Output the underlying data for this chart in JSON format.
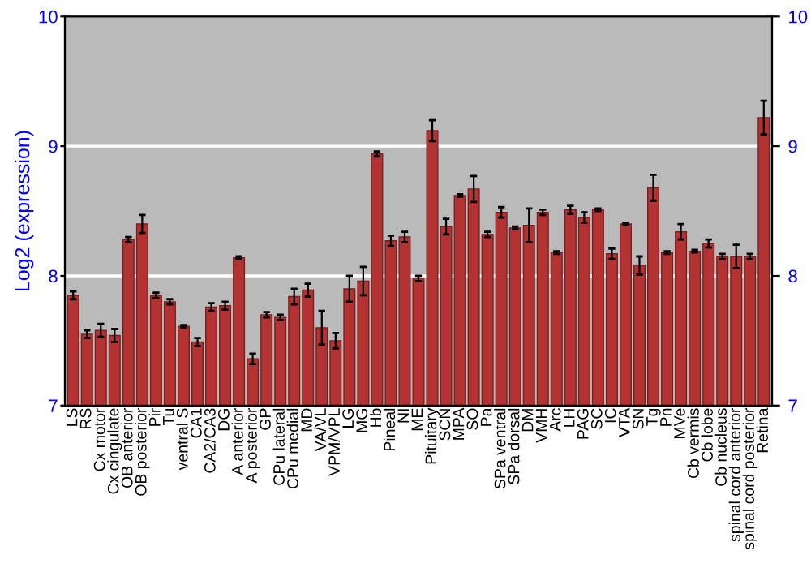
{
  "chart_data": {
    "type": "bar",
    "ylabel": "Log2 (expression)",
    "categories": [
      "LS",
      "RS",
      "Cx motor",
      "Cx cingulate",
      "OB anterior",
      "OB posterior",
      "Pir",
      "Tu",
      "ventral S",
      "CA1",
      "CA2/CA3",
      "DG",
      "A anterior",
      "A posterior",
      "GP",
      "CPu lateral",
      "CPu medial",
      "MD",
      "VA/VL",
      "VPM/VPL",
      "LG",
      "MG",
      "Hb",
      "Pineal",
      "NI",
      "ME",
      "Pituitary",
      "SCN",
      "MPA",
      "SO",
      "Pa",
      "SPa ventral",
      "SPa dorsal",
      "DM",
      "VMH",
      "Arc",
      "LH",
      "PAG",
      "SC",
      "IC",
      "VTA",
      "SN",
      "Tg",
      "Pn",
      "MVe",
      "Cb vermis",
      "Cb lobe",
      "Cb nucleus",
      "spinal cord anterior",
      "spinal cord posterior",
      "Retina"
    ],
    "series": [
      {
        "color": "#b33333",
        "values": [
          7.85,
          7.55,
          7.58,
          7.54,
          8.28,
          8.4,
          7.85,
          7.8,
          7.61,
          7.49,
          7.76,
          7.77,
          8.14,
          7.36,
          7.7,
          7.68,
          7.84,
          7.89,
          7.6,
          7.5,
          7.9,
          7.96,
          8.94,
          8.27,
          8.3,
          7.98,
          9.12,
          8.38,
          8.62,
          8.67,
          8.32,
          8.49,
          8.37,
          8.39,
          8.49,
          8.18,
          8.51,
          8.45,
          8.51,
          8.17,
          8.4,
          8.08,
          8.68,
          8.18,
          8.34,
          8.19,
          8.25,
          8.15,
          8.15,
          8.15,
          9.22
        ],
        "errors": [
          0.03,
          0.03,
          0.05,
          0.05,
          0.02,
          0.07,
          0.02,
          0.02,
          0.01,
          0.03,
          0.03,
          0.03,
          0.01,
          0.04,
          0.02,
          0.02,
          0.06,
          0.05,
          0.13,
          0.06,
          0.1,
          0.11,
          0.02,
          0.04,
          0.04,
          0.02,
          0.08,
          0.06,
          0.01,
          0.1,
          0.02,
          0.04,
          0.01,
          0.13,
          0.02,
          0.01,
          0.03,
          0.04,
          0.01,
          0.04,
          0.01,
          0.07,
          0.1,
          0.01,
          0.06,
          0.01,
          0.03,
          0.02,
          0.09,
          0.02,
          0.13
        ]
      }
    ],
    "ylim": [
      7,
      10
    ],
    "yticks": [
      7,
      8,
      9,
      10
    ],
    "y2lim": [
      7,
      10
    ],
    "y2ticks": [
      7,
      8,
      9,
      10
    ],
    "grid": "y",
    "legend": false
  }
}
